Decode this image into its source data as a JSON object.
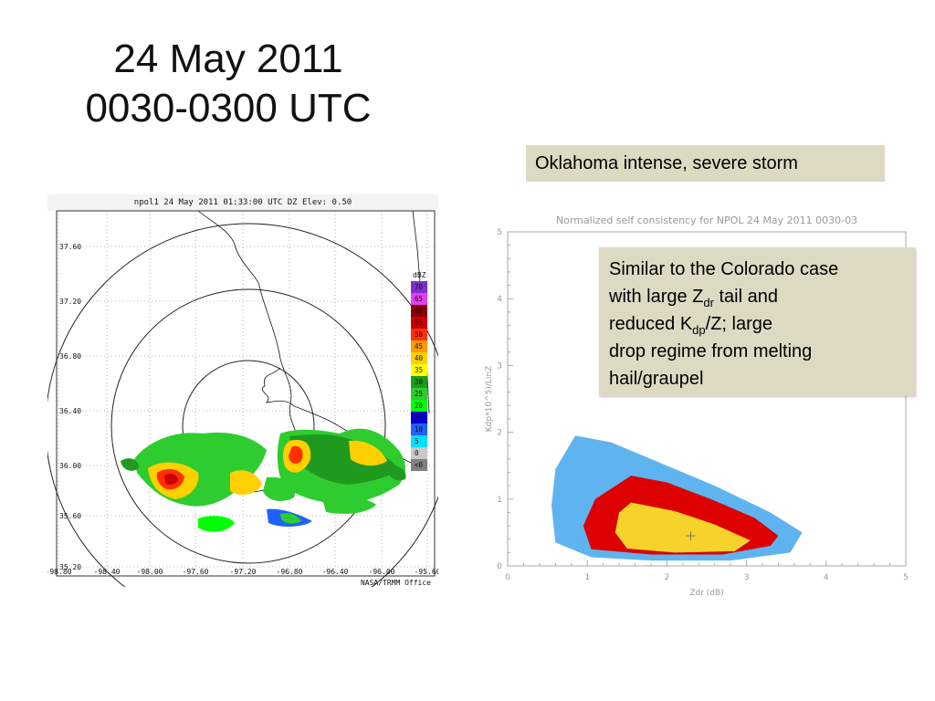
{
  "slide": {
    "title_line1": "24 May 2011",
    "title_line2": "0030-0300 UTC",
    "callout_top": "Oklahoma intense, severe storm",
    "callout_main": {
      "line1": "Similar to the Colorado case",
      "line2_pre": "with large Z",
      "line2_sub": "dr",
      "line2_post": " tail and",
      "line3_pre": "reduced K",
      "line3_sub": "dp",
      "line3_post": "/Z; large",
      "line4": "drop regime from melting",
      "line5": "hail/graupel"
    }
  },
  "radar_panel": {
    "header": "npol1  24 May 2011 01:33:00 UTC  DZ  Elev: 0.50",
    "footer": "NASA/TRMM Office",
    "lat_labels": [
      "37.60",
      "37.20",
      "36.80",
      "36.40",
      "36.00",
      "35.60",
      "35.20"
    ],
    "lon_labels": [
      "-98.80",
      "-98.40",
      "-98.00",
      "-97.60",
      "-97.20",
      "-96.80",
      "-96.40",
      "-96.00",
      "-95.60"
    ],
    "legend_unit": "dBZ",
    "legend": [
      {
        "label": "70",
        "color": "#7f2fd0"
      },
      {
        "label": "65",
        "color": "#e040f0"
      },
      {
        "label": "60",
        "color": "#8b0000"
      },
      {
        "label": "55",
        "color": "#cc0000"
      },
      {
        "label": "50",
        "color": "#ff3000"
      },
      {
        "label": "45",
        "color": "#ff9a00"
      },
      {
        "label": "40",
        "color": "#ffd000"
      },
      {
        "label": "35",
        "color": "#ffff00"
      },
      {
        "label": "30",
        "color": "#1f9a1f"
      },
      {
        "label": "25",
        "color": "#2fcc2f"
      },
      {
        "label": "20",
        "color": "#00ff00"
      },
      {
        "label": "15",
        "color": "#0000d0"
      },
      {
        "label": "10",
        "color": "#2060ff"
      },
      {
        "label": "5",
        "color": "#00e0ff"
      },
      {
        "label": "0",
        "color": "#c8c8c8"
      },
      {
        "label": "<0",
        "color": "#808080"
      }
    ]
  },
  "chart_data": {
    "type": "contour",
    "title": "Normalized self consistency for NPOL 24 May 2011 0030-03",
    "xlabel": "Zdr (dB)",
    "ylabel": "Kdp*10^5)/LinZ",
    "xlim": [
      0,
      5
    ],
    "ylim": [
      0,
      5
    ],
    "xticks": [
      "0",
      "1",
      "2",
      "3",
      "4",
      "5"
    ],
    "yticks": [
      "0",
      "1",
      "2",
      "3",
      "4",
      "5"
    ],
    "levels": [
      {
        "name": "outer",
        "color": "#5fb4f0",
        "polygon": [
          [
            0.85,
            1.95
          ],
          [
            1.3,
            1.85
          ],
          [
            1.9,
            1.55
          ],
          [
            2.6,
            1.2
          ],
          [
            3.3,
            0.8
          ],
          [
            3.7,
            0.5
          ],
          [
            3.55,
            0.2
          ],
          [
            2.8,
            0.08
          ],
          [
            1.8,
            0.08
          ],
          [
            1.05,
            0.13
          ],
          [
            0.6,
            0.35
          ],
          [
            0.55,
            0.9
          ],
          [
            0.6,
            1.45
          ]
        ]
      },
      {
        "name": "middle",
        "color": "#dd0000",
        "polygon": [
          [
            1.55,
            1.35
          ],
          [
            2.0,
            1.25
          ],
          [
            2.55,
            1.0
          ],
          [
            3.1,
            0.72
          ],
          [
            3.4,
            0.45
          ],
          [
            3.3,
            0.3
          ],
          [
            2.7,
            0.17
          ],
          [
            1.8,
            0.17
          ],
          [
            1.05,
            0.25
          ],
          [
            0.95,
            0.6
          ],
          [
            1.1,
            1.0
          ]
        ]
      },
      {
        "name": "inner",
        "color": "#f5d32a",
        "polygon": [
          [
            1.55,
            0.95
          ],
          [
            2.1,
            0.82
          ],
          [
            2.6,
            0.62
          ],
          [
            3.05,
            0.38
          ],
          [
            2.85,
            0.22
          ],
          [
            2.1,
            0.2
          ],
          [
            1.5,
            0.26
          ],
          [
            1.35,
            0.5
          ],
          [
            1.4,
            0.8
          ]
        ]
      }
    ],
    "marker": {
      "x": 2.3,
      "y": 0.45,
      "symbol": "+"
    }
  },
  "colors": {
    "callout_bg": "#ddd9c3",
    "axis_gray": "#aaaaaa"
  }
}
